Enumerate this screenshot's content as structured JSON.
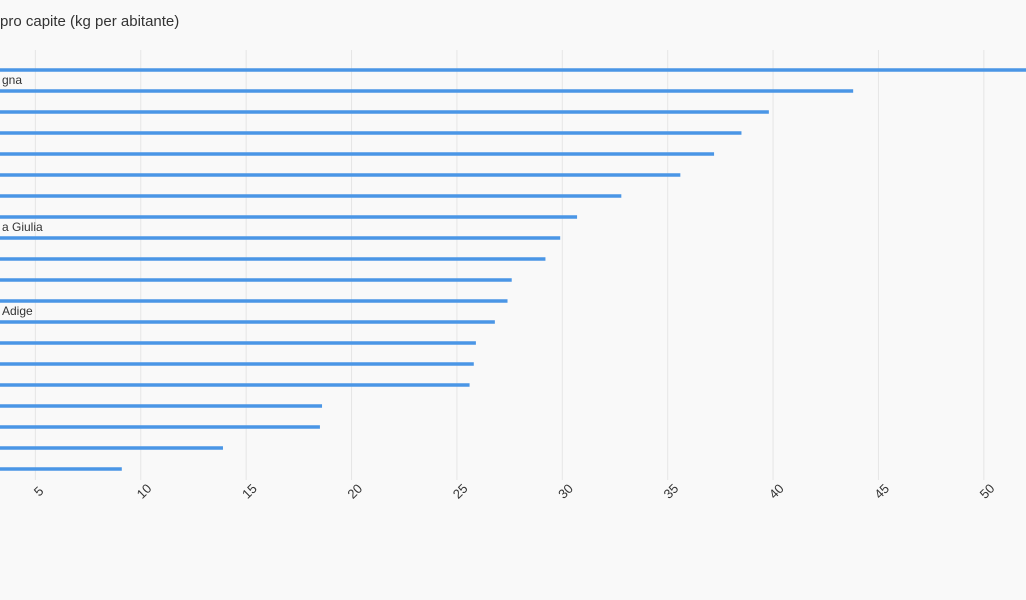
{
  "chart_data": {
    "type": "bar",
    "orientation": "horizontal",
    "title": "pro capite (kg per abitante)",
    "categories": [
      null,
      "gna",
      null,
      null,
      null,
      null,
      null,
      null,
      "a Giulia",
      null,
      null,
      null,
      "Adige",
      null,
      null,
      null,
      null,
      null,
      null,
      null
    ],
    "values": [
      53,
      43.8,
      39.8,
      38.5,
      37.2,
      35.6,
      32.8,
      30.7,
      29.9,
      29.2,
      27.6,
      27.4,
      26.8,
      25.9,
      25.8,
      25.6,
      18.6,
      18.5,
      13.9,
      9.1
    ],
    "color": "#4a96e6",
    "xlim": [
      0,
      52
    ],
    "xticks": [
      5,
      10,
      15,
      20,
      25,
      30,
      35,
      40,
      45,
      50
    ],
    "grid": true
  }
}
